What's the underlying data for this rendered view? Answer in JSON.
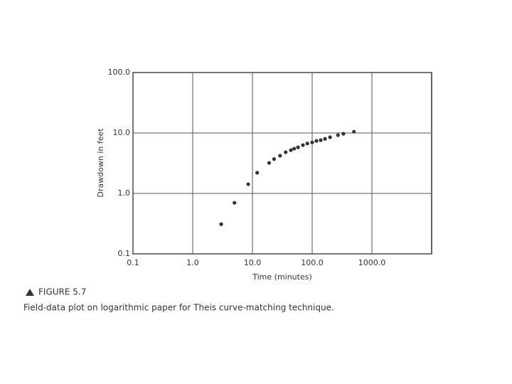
{
  "chart_data": {
    "type": "scatter",
    "x_label": "Time (minutes)",
    "y_label": "Drawdown in feet",
    "figure_label": "FIGURE 5.7",
    "caption": "Field-data plot on logarithmic paper for Theis curve-matching technique.",
    "x": [
      3,
      5,
      8.5,
      12,
      19,
      23,
      29,
      36,
      44,
      50,
      58,
      70,
      83,
      100,
      118,
      139,
      164,
      199,
      270,
      333,
      500
    ],
    "values": [
      0.31,
      0.7,
      1.42,
      2.2,
      3.2,
      3.7,
      4.2,
      4.8,
      5.2,
      5.5,
      5.8,
      6.3,
      6.7,
      7.0,
      7.4,
      7.6,
      8.0,
      8.5,
      9.2,
      9.7,
      10.5
    ],
    "color": "#333333",
    "xlim": [
      0.1,
      10000
    ],
    "ylim": [
      0.1,
      100
    ],
    "xticks": [
      0.1,
      {
        "value": 1,
        "label": "1.0"
      },
      {
        "value": 10,
        "label": "10.0"
      },
      {
        "value": 100,
        "label": "100.0"
      },
      {
        "value": 1000,
        "label": "1000.0"
      }
    ],
    "yticks": [
      0.1,
      {
        "value": 1,
        "label": "1.0"
      },
      {
        "value": 10,
        "label": "10.0"
      },
      {
        "value": 100,
        "label": "100.0"
      }
    ],
    "log_x": true,
    "log_y": true,
    "grid": true
  }
}
